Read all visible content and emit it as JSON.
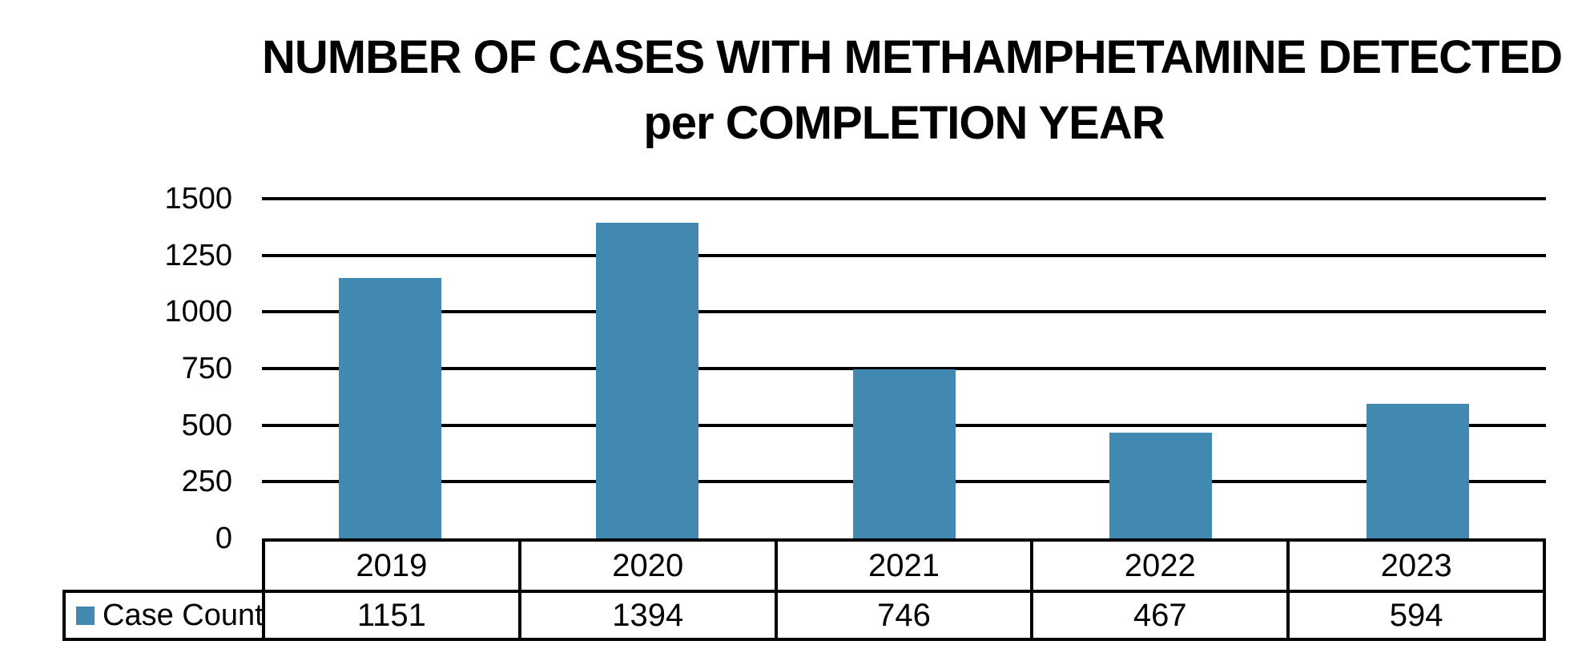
{
  "title": {
    "line1": "NUMBER OF CASES WITH METHAMPHETAMINE DETECTED",
    "line2": "per COMPLETION YEAR"
  },
  "legend": {
    "label": "Case Count"
  },
  "colors": {
    "bar": "#4289B2",
    "grid": "#000000",
    "border": "#000000",
    "text": "#000000",
    "background": "#ffffff"
  },
  "chart_data": {
    "type": "bar",
    "title": "NUMBER OF CASES WITH METHAMPHETAMINE DETECTED per COMPLETION YEAR",
    "categories": [
      "2019",
      "2020",
      "2021",
      "2022",
      "2023"
    ],
    "series": [
      {
        "name": "Case Count",
        "values": [
          1151,
          1394,
          746,
          467,
          594
        ]
      }
    ],
    "xlabel": "",
    "ylabel": "",
    "ylim": [
      0,
      1500
    ],
    "yticks": [
      0,
      250,
      500,
      750,
      1000,
      1250,
      1500
    ],
    "grid": true,
    "legend_position": "data-table-left",
    "data_table": true
  }
}
